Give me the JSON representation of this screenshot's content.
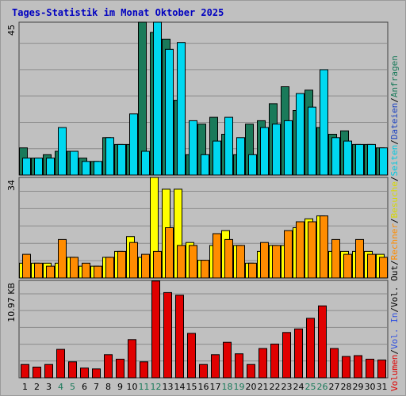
{
  "title": "Tages-Statistik im Monat Oktober 2025",
  "colors": {
    "background": "#c0c0c0",
    "gridline": "#8c8c8c",
    "anfragen": "#1a7a5a",
    "seiten": "#00d8f0",
    "besuche": "#ffff00",
    "rechner": "#ff8c00",
    "volumen": "#e00000",
    "weekday_label": "#000000",
    "weekend_label": "#1a7a5a"
  },
  "chart_data": [
    {
      "type": "bar",
      "panel": "requests",
      "x": [
        "1",
        "2",
        "3",
        "4",
        "5",
        "6",
        "7",
        "8",
        "9",
        "10",
        "11",
        "12",
        "13",
        "14",
        "15",
        "16",
        "17",
        "18",
        "19",
        "20",
        "21",
        "22",
        "23",
        "24",
        "25",
        "26",
        "27",
        "28",
        "29",
        "30",
        "31"
      ],
      "ylim": [
        0,
        45
      ],
      "ymax_label": "45",
      "grid": true,
      "series": [
        {
          "name": "Anfragen",
          "color": "#1a7a5a",
          "values": [
            8,
            5,
            6,
            7,
            7,
            5,
            4,
            11,
            9,
            9,
            45,
            42,
            40,
            22,
            6,
            15,
            17,
            12,
            6,
            15,
            16,
            21,
            26,
            19,
            25,
            14,
            12,
            13,
            9,
            9,
            8
          ]
        },
        {
          "name": "Seiten",
          "color": "#00d8f0",
          "values": [
            5,
            5,
            5,
            14,
            7,
            4,
            4,
            11,
            9,
            18,
            7,
            45,
            37,
            39,
            16,
            6,
            10,
            17,
            11,
            6,
            14,
            15,
            16,
            24,
            20,
            31,
            11,
            10,
            9,
            9,
            8
          ]
        }
      ]
    },
    {
      "type": "bar",
      "panel": "visits",
      "x": [
        "1",
        "2",
        "3",
        "4",
        "5",
        "6",
        "7",
        "8",
        "9",
        "10",
        "11",
        "12",
        "13",
        "14",
        "15",
        "16",
        "17",
        "18",
        "19",
        "20",
        "21",
        "22",
        "23",
        "24",
        "25",
        "26",
        "27",
        "28",
        "29",
        "30",
        "31"
      ],
      "ylim": [
        0,
        34
      ],
      "ymax_label": "34",
      "grid": true,
      "series": [
        {
          "name": "Besuche",
          "color": "#ffff00",
          "values": [
            5,
            5,
            5,
            5,
            7,
            4,
            4,
            7,
            9,
            14,
            7,
            34,
            30,
            30,
            12,
            6,
            11,
            16,
            11,
            5,
            9,
            11,
            11,
            17,
            20,
            21,
            9,
            9,
            9,
            9,
            8
          ]
        },
        {
          "name": "Rechner",
          "color": "#ff8c00",
          "values": [
            8,
            5,
            4,
            13,
            7,
            5,
            4,
            7,
            9,
            12,
            8,
            9,
            17,
            11,
            11,
            6,
            15,
            13,
            11,
            5,
            12,
            11,
            16,
            19,
            19,
            21,
            13,
            8,
            13,
            8,
            7
          ]
        }
      ]
    },
    {
      "type": "bar",
      "panel": "volume",
      "x": [
        "1",
        "2",
        "3",
        "4",
        "5",
        "6",
        "7",
        "8",
        "9",
        "10",
        "11",
        "12",
        "13",
        "14",
        "15",
        "16",
        "17",
        "18",
        "19",
        "20",
        "21",
        "22",
        "23",
        "24",
        "25",
        "26",
        "27",
        "28",
        "29",
        "30",
        "31"
      ],
      "ylim": [
        0,
        10.97
      ],
      "ymax_label": "10.97 KB",
      "grid": true,
      "series": [
        {
          "name": "Volumen",
          "color": "#e00000",
          "values": [
            1.5,
            1.2,
            1.5,
            3.2,
            1.8,
            1.1,
            1.0,
            2.6,
            2.1,
            4.3,
            1.8,
            10.9,
            9.6,
            9.3,
            5.0,
            1.5,
            2.6,
            4.0,
            2.7,
            1.5,
            3.3,
            3.8,
            5.1,
            5.5,
            6.7,
            8.1,
            3.3,
            2.4,
            2.5,
            2.1,
            2.0
          ]
        }
      ]
    }
  ],
  "x_labels": [
    {
      "text": "1",
      "weekend": false
    },
    {
      "text": "2",
      "weekend": false
    },
    {
      "text": "3",
      "weekend": false
    },
    {
      "text": "4",
      "weekend": true
    },
    {
      "text": "5",
      "weekend": true
    },
    {
      "text": "6",
      "weekend": false
    },
    {
      "text": "7",
      "weekend": false
    },
    {
      "text": "8",
      "weekend": false
    },
    {
      "text": "9",
      "weekend": false
    },
    {
      "text": "10",
      "weekend": false
    },
    {
      "text": "11",
      "weekend": true
    },
    {
      "text": "12",
      "weekend": true
    },
    {
      "text": "13",
      "weekend": false
    },
    {
      "text": "14",
      "weekend": false
    },
    {
      "text": "15",
      "weekend": false
    },
    {
      "text": "16",
      "weekend": false
    },
    {
      "text": "17",
      "weekend": false
    },
    {
      "text": "18",
      "weekend": true
    },
    {
      "text": "19",
      "weekend": true
    },
    {
      "text": "20",
      "weekend": false
    },
    {
      "text": "21",
      "weekend": false
    },
    {
      "text": "22",
      "weekend": false
    },
    {
      "text": "23",
      "weekend": false
    },
    {
      "text": "24",
      "weekend": false
    },
    {
      "text": "25",
      "weekend": true
    },
    {
      "text": "26",
      "weekend": true
    },
    {
      "text": "27",
      "weekend": false
    },
    {
      "text": "28",
      "weekend": false
    },
    {
      "text": "29",
      "weekend": false
    },
    {
      "text": "30",
      "weekend": false
    },
    {
      "text": "31",
      "weekend": false
    }
  ],
  "right_legend": [
    {
      "text": "Volumen",
      "color": "#e00000"
    },
    {
      "text": "/",
      "color": "#000000"
    },
    {
      "text": "Vol. In",
      "color": "#3050e0"
    },
    {
      "text": "/",
      "color": "#000000"
    },
    {
      "text": "Vol. Out",
      "color": "#000000"
    },
    {
      "text": "/",
      "color": "#000000"
    },
    {
      "text": "Rechner",
      "color": "#ff8c00"
    },
    {
      "text": "/",
      "color": "#000000"
    },
    {
      "text": "Besuche",
      "color": "#d8d800"
    },
    {
      "text": "/",
      "color": "#000000"
    },
    {
      "text": "Seiten",
      "color": "#00c8e0"
    },
    {
      "text": "/",
      "color": "#000000"
    },
    {
      "text": "Dateien",
      "color": "#1a40c0"
    },
    {
      "text": "/",
      "color": "#000000"
    },
    {
      "text": "Anfragen",
      "color": "#1a7a5a"
    }
  ]
}
